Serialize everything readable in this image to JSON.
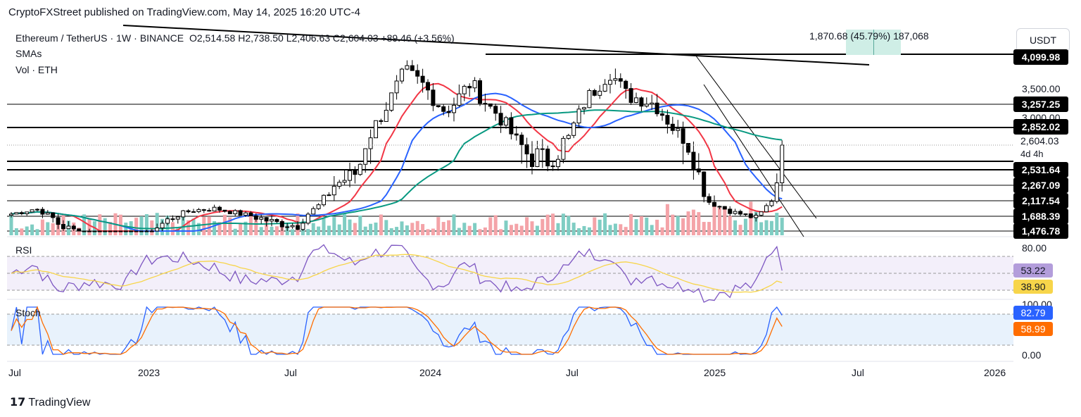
{
  "header": "CryptoFXStreet published on TradingView.com, May 14, 2025 16:20 UTC-4",
  "symbol": {
    "name": "Ethereum / TetherUS",
    "interval": "1W",
    "exchange": "BINANCE",
    "open": "O2,514.58",
    "high": "H2,738.50",
    "low": "L2,406.63",
    "close": "C2,604.03",
    "change": "+89.46 (+3.56%)"
  },
  "indicators": {
    "smas": "SMAs",
    "vol": "Vol · ETH"
  },
  "currency_button": "USDT",
  "measure": {
    "text": "1,870.68 (45.79%) 187,068"
  },
  "price_axis": {
    "top_tag": "4,099.98",
    "labels": [
      "3,500.00",
      "3,000.00"
    ],
    "tags": [
      {
        "text": "3,257.25",
        "bg": "#000000"
      },
      {
        "text": "2,852.02",
        "bg": "#000000"
      },
      {
        "text": "2,531.64",
        "bg": "#000000"
      },
      {
        "text": "2,267.09",
        "bg": "#000000"
      },
      {
        "text": "2,117.54",
        "bg": "#000000"
      },
      {
        "text": "1,688.39",
        "bg": "#000000"
      },
      {
        "text": "1,476.78",
        "bg": "#000000"
      }
    ],
    "current_price": "2,604.03",
    "countdown": "4d 4h"
  },
  "rsi": {
    "title": "RSI",
    "level_label": "80.00",
    "value": "53.22",
    "ma_value": "38.90",
    "colors": {
      "rsi": "#7e57c2",
      "ma": "#f7d54a"
    }
  },
  "stoch": {
    "title": "Stoch",
    "level_label": "100.00",
    "zero_label": "0.00",
    "k_value": "82.79",
    "d_value": "58.99",
    "colors": {
      "k": "#2962ff",
      "d": "#ff6d00"
    }
  },
  "time_axis": [
    "Jul",
    "2023",
    "Jul",
    "2024",
    "Jul",
    "2025",
    "Jul",
    "2026"
  ],
  "logo": "TradingView",
  "chart_data": {
    "type": "candlestick",
    "interval": "1W",
    "pair": "ETH/USDT",
    "ohlc_latest": {
      "open": 2514.58,
      "high": 2738.5,
      "low": 2406.63,
      "close": 2604.03
    },
    "horizontal_levels": [
      4099.98,
      3257.25,
      2852.02,
      2531.64,
      2267.09,
      2117.54,
      1688.39,
      1476.78
    ],
    "sma_colors": {
      "sma50": "#f23645",
      "sma100": "#2962ff",
      "sma200": "#089981"
    },
    "volume_colors": {
      "up": "#7fcdc3",
      "down": "#f4a3a8"
    },
    "candle_colors": {
      "up": "#ffffff",
      "down": "#000000"
    },
    "rsi_last": 53.22,
    "rsi_ma_last": 38.9,
    "stoch_k_last": 82.79,
    "stoch_d_last": 58.99
  }
}
